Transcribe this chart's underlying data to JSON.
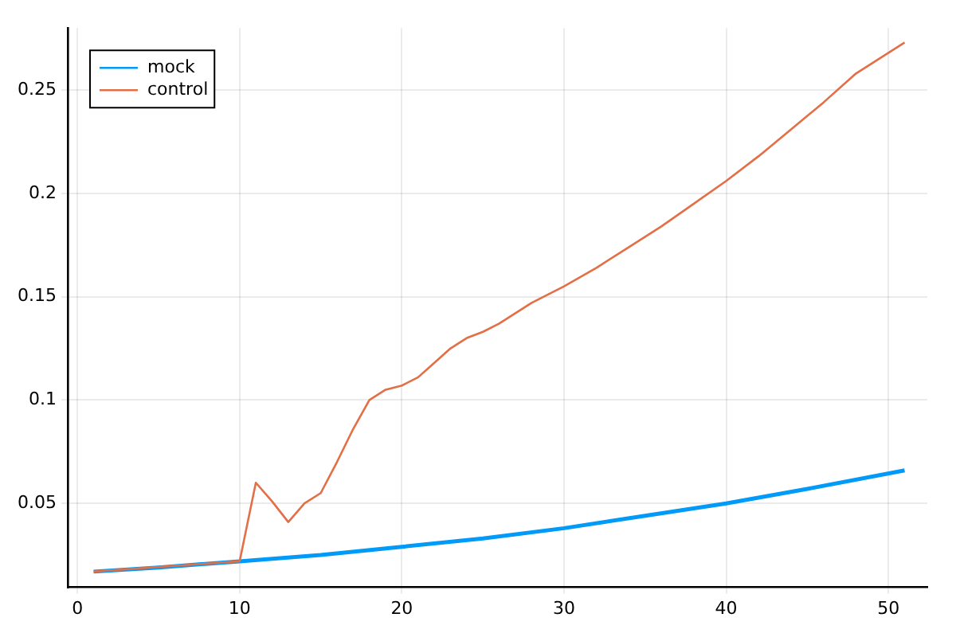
{
  "chart_data": {
    "type": "line",
    "xlim": [
      -0.6,
      52.4
    ],
    "ylim": [
      0.0094,
      0.28
    ],
    "xticks": [
      0,
      10,
      20,
      30,
      40,
      50
    ],
    "yticks": [
      0.05,
      0.1,
      0.15,
      0.2,
      0.25
    ],
    "grid": true,
    "legend": "top left",
    "marker": "none",
    "line_style": "solid",
    "series": [
      {
        "name": "mock",
        "color": "#009af9",
        "x": [
          1,
          5,
          10,
          15,
          20,
          25,
          30,
          35,
          40,
          45,
          51
        ],
        "values": [
          0.017,
          0.019,
          0.022,
          0.025,
          0.029,
          0.033,
          0.038,
          0.044,
          0.05,
          0.057,
          0.066
        ]
      },
      {
        "name": "control",
        "color": "#e26f46",
        "x": [
          1,
          10,
          11,
          12,
          13,
          14,
          15,
          16,
          17,
          18,
          19,
          20,
          21,
          22,
          23,
          24,
          25,
          26,
          27,
          28,
          30,
          32,
          34,
          36,
          38,
          40,
          42,
          44,
          46,
          48,
          51
        ],
        "values": [
          0.017,
          0.022,
          0.06,
          0.051,
          0.041,
          0.05,
          0.055,
          0.07,
          0.086,
          0.1,
          0.105,
          0.107,
          0.111,
          0.118,
          0.125,
          0.13,
          0.133,
          0.137,
          0.142,
          0.147,
          0.155,
          0.164,
          0.174,
          0.184,
          0.195,
          0.206,
          0.218,
          0.231,
          0.244,
          0.258,
          0.273
        ]
      }
    ]
  }
}
